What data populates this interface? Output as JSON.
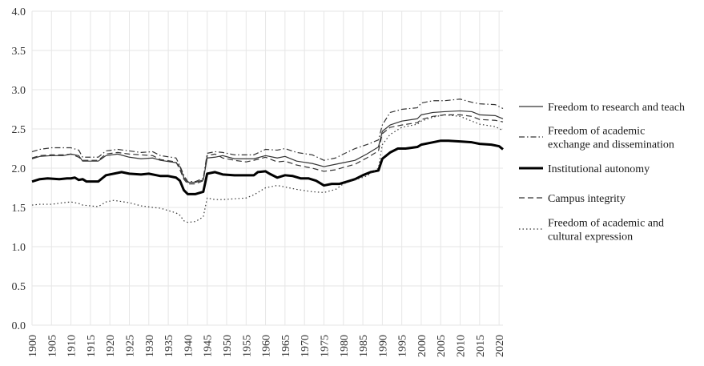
{
  "chart_data": {
    "type": "line",
    "title": "",
    "xlabel": "",
    "ylabel": "",
    "xlim": [
      1900,
      2021
    ],
    "ylim": [
      0,
      4.0
    ],
    "yticks": [
      "0.0",
      "0.5",
      "1.0",
      "1.5",
      "2.0",
      "2.5",
      "3.0",
      "3.5",
      "4.0"
    ],
    "xticks": [
      "1900",
      "1905",
      "1910",
      "1915",
      "1920",
      "1925",
      "1930",
      "1935",
      "1940",
      "1945",
      "1950",
      "1955",
      "1960",
      "1965",
      "1970",
      "1975",
      "1980",
      "1985",
      "1990",
      "1995",
      "2000",
      "2005",
      "2010",
      "2015",
      "2020"
    ],
    "grid": true,
    "legend_position": "right",
    "series": [
      {
        "name": "Freedom to research and teach",
        "style": "solid",
        "color": "#333333",
        "points": [
          [
            1900,
            2.12
          ],
          [
            1902,
            2.15
          ],
          [
            1905,
            2.16
          ],
          [
            1908,
            2.16
          ],
          [
            1910,
            2.18
          ],
          [
            1912,
            2.16
          ],
          [
            1913,
            2.09
          ],
          [
            1917,
            2.09
          ],
          [
            1919,
            2.16
          ],
          [
            1922,
            2.18
          ],
          [
            1925,
            2.14
          ],
          [
            1928,
            2.12
          ],
          [
            1931,
            2.13
          ],
          [
            1933,
            2.1
          ],
          [
            1937,
            2.07
          ],
          [
            1938,
            2.02
          ],
          [
            1939,
            1.88
          ],
          [
            1940,
            1.82
          ],
          [
            1942,
            1.82
          ],
          [
            1944,
            1.85
          ],
          [
            1945,
            2.13
          ],
          [
            1947,
            2.14
          ],
          [
            1949,
            2.16
          ],
          [
            1952,
            2.12
          ],
          [
            1955,
            2.12
          ],
          [
            1957,
            2.12
          ],
          [
            1960,
            2.16
          ],
          [
            1963,
            2.13
          ],
          [
            1965,
            2.15
          ],
          [
            1968,
            2.09
          ],
          [
            1972,
            2.06
          ],
          [
            1975,
            2.02
          ],
          [
            1978,
            2.05
          ],
          [
            1980,
            2.07
          ],
          [
            1983,
            2.1
          ],
          [
            1986,
            2.18
          ],
          [
            1989,
            2.27
          ],
          [
            1990,
            2.47
          ],
          [
            1992,
            2.55
          ],
          [
            1995,
            2.6
          ],
          [
            1999,
            2.63
          ],
          [
            2000,
            2.68
          ],
          [
            2003,
            2.71
          ],
          [
            2006,
            2.72
          ],
          [
            2010,
            2.73
          ],
          [
            2013,
            2.72
          ],
          [
            2015,
            2.68
          ],
          [
            2019,
            2.67
          ],
          [
            2021,
            2.63
          ]
        ]
      },
      {
        "name": "Freedom of academic exchange and dissemination",
        "style": "dashdot",
        "color": "#333333",
        "points": [
          [
            1900,
            2.21
          ],
          [
            1902,
            2.24
          ],
          [
            1905,
            2.26
          ],
          [
            1908,
            2.26
          ],
          [
            1910,
            2.26
          ],
          [
            1912,
            2.23
          ],
          [
            1913,
            2.14
          ],
          [
            1917,
            2.14
          ],
          [
            1919,
            2.22
          ],
          [
            1922,
            2.24
          ],
          [
            1925,
            2.22
          ],
          [
            1928,
            2.2
          ],
          [
            1931,
            2.21
          ],
          [
            1933,
            2.16
          ],
          [
            1937,
            2.13
          ],
          [
            1938,
            2.03
          ],
          [
            1939,
            1.91
          ],
          [
            1940,
            1.83
          ],
          [
            1942,
            1.83
          ],
          [
            1944,
            1.87
          ],
          [
            1945,
            2.19
          ],
          [
            1947,
            2.21
          ],
          [
            1949,
            2.2
          ],
          [
            1952,
            2.17
          ],
          [
            1955,
            2.17
          ],
          [
            1957,
            2.17
          ],
          [
            1960,
            2.24
          ],
          [
            1963,
            2.23
          ],
          [
            1965,
            2.25
          ],
          [
            1968,
            2.2
          ],
          [
            1972,
            2.17
          ],
          [
            1975,
            2.1
          ],
          [
            1978,
            2.13
          ],
          [
            1980,
            2.18
          ],
          [
            1983,
            2.25
          ],
          [
            1986,
            2.3
          ],
          [
            1989,
            2.36
          ],
          [
            1990,
            2.55
          ],
          [
            1992,
            2.71
          ],
          [
            1995,
            2.75
          ],
          [
            1999,
            2.77
          ],
          [
            2000,
            2.83
          ],
          [
            2003,
            2.86
          ],
          [
            2006,
            2.86
          ],
          [
            2010,
            2.88
          ],
          [
            2013,
            2.84
          ],
          [
            2015,
            2.82
          ],
          [
            2019,
            2.81
          ],
          [
            2021,
            2.76
          ]
        ]
      },
      {
        "name": "Institutional autonomy",
        "style": "bold",
        "color": "#000000",
        "points": [
          [
            1900,
            1.83
          ],
          [
            1902,
            1.86
          ],
          [
            1904,
            1.87
          ],
          [
            1907,
            1.86
          ],
          [
            1909,
            1.87
          ],
          [
            1910,
            1.87
          ],
          [
            1911,
            1.88
          ],
          [
            1912,
            1.85
          ],
          [
            1913,
            1.86
          ],
          [
            1914,
            1.83
          ],
          [
            1916,
            1.83
          ],
          [
            1917,
            1.83
          ],
          [
            1919,
            1.91
          ],
          [
            1922,
            1.94
          ],
          [
            1923,
            1.95
          ],
          [
            1925,
            1.93
          ],
          [
            1928,
            1.92
          ],
          [
            1930,
            1.93
          ],
          [
            1932,
            1.91
          ],
          [
            1933,
            1.9
          ],
          [
            1935,
            1.9
          ],
          [
            1937,
            1.88
          ],
          [
            1938,
            1.84
          ],
          [
            1939,
            1.72
          ],
          [
            1940,
            1.67
          ],
          [
            1942,
            1.67
          ],
          [
            1944,
            1.7
          ],
          [
            1945,
            1.93
          ],
          [
            1947,
            1.95
          ],
          [
            1949,
            1.92
          ],
          [
            1952,
            1.91
          ],
          [
            1955,
            1.91
          ],
          [
            1957,
            1.91
          ],
          [
            1958,
            1.95
          ],
          [
            1960,
            1.96
          ],
          [
            1961,
            1.93
          ],
          [
            1963,
            1.88
          ],
          [
            1965,
            1.91
          ],
          [
            1967,
            1.9
          ],
          [
            1969,
            1.87
          ],
          [
            1971,
            1.87
          ],
          [
            1973,
            1.84
          ],
          [
            1975,
            1.78
          ],
          [
            1977,
            1.8
          ],
          [
            1979,
            1.8
          ],
          [
            1981,
            1.83
          ],
          [
            1983,
            1.86
          ],
          [
            1985,
            1.91
          ],
          [
            1987,
            1.95
          ],
          [
            1989,
            1.97
          ],
          [
            1990,
            2.12
          ],
          [
            1992,
            2.2
          ],
          [
            1994,
            2.25
          ],
          [
            1996,
            2.25
          ],
          [
            1999,
            2.27
          ],
          [
            2000,
            2.3
          ],
          [
            2003,
            2.33
          ],
          [
            2005,
            2.35
          ],
          [
            2007,
            2.35
          ],
          [
            2010,
            2.34
          ],
          [
            2013,
            2.33
          ],
          [
            2015,
            2.31
          ],
          [
            2018,
            2.3
          ],
          [
            2020,
            2.28
          ],
          [
            2021,
            2.24
          ]
        ]
      },
      {
        "name": "Campus integrity",
        "style": "dashed",
        "color": "#333333",
        "points": [
          [
            1900,
            2.13
          ],
          [
            1902,
            2.16
          ],
          [
            1905,
            2.17
          ],
          [
            1908,
            2.17
          ],
          [
            1910,
            2.18
          ],
          [
            1912,
            2.14
          ],
          [
            1913,
            2.1
          ],
          [
            1917,
            2.1
          ],
          [
            1919,
            2.18
          ],
          [
            1922,
            2.2
          ],
          [
            1925,
            2.18
          ],
          [
            1928,
            2.17
          ],
          [
            1931,
            2.16
          ],
          [
            1933,
            2.11
          ],
          [
            1937,
            2.08
          ],
          [
            1938,
            1.98
          ],
          [
            1939,
            1.86
          ],
          [
            1940,
            1.8
          ],
          [
            1942,
            1.8
          ],
          [
            1944,
            1.84
          ],
          [
            1945,
            2.16
          ],
          [
            1947,
            2.18
          ],
          [
            1949,
            2.13
          ],
          [
            1952,
            2.1
          ],
          [
            1955,
            2.08
          ],
          [
            1957,
            2.1
          ],
          [
            1960,
            2.14
          ],
          [
            1963,
            2.08
          ],
          [
            1965,
            2.09
          ],
          [
            1968,
            2.04
          ],
          [
            1972,
            2.0
          ],
          [
            1975,
            1.96
          ],
          [
            1978,
            1.98
          ],
          [
            1980,
            2.01
          ],
          [
            1983,
            2.05
          ],
          [
            1986,
            2.13
          ],
          [
            1989,
            2.22
          ],
          [
            1990,
            2.44
          ],
          [
            1992,
            2.52
          ],
          [
            1995,
            2.55
          ],
          [
            1999,
            2.58
          ],
          [
            2000,
            2.62
          ],
          [
            2003,
            2.66
          ],
          [
            2006,
            2.68
          ],
          [
            2010,
            2.68
          ],
          [
            2013,
            2.66
          ],
          [
            2015,
            2.62
          ],
          [
            2019,
            2.61
          ],
          [
            2021,
            2.59
          ]
        ]
      },
      {
        "name": "Freedom of academic and cultural expression",
        "style": "dotted",
        "color": "#333333",
        "points": [
          [
            1900,
            1.53
          ],
          [
            1902,
            1.54
          ],
          [
            1905,
            1.54
          ],
          [
            1908,
            1.56
          ],
          [
            1910,
            1.57
          ],
          [
            1912,
            1.55
          ],
          [
            1913,
            1.53
          ],
          [
            1917,
            1.51
          ],
          [
            1919,
            1.57
          ],
          [
            1921,
            1.59
          ],
          [
            1925,
            1.56
          ],
          [
            1928,
            1.52
          ],
          [
            1931,
            1.5
          ],
          [
            1933,
            1.49
          ],
          [
            1935,
            1.46
          ],
          [
            1937,
            1.43
          ],
          [
            1938,
            1.4
          ],
          [
            1939,
            1.33
          ],
          [
            1940,
            1.31
          ],
          [
            1942,
            1.32
          ],
          [
            1944,
            1.38
          ],
          [
            1945,
            1.62
          ],
          [
            1947,
            1.6
          ],
          [
            1949,
            1.6
          ],
          [
            1952,
            1.61
          ],
          [
            1955,
            1.62
          ],
          [
            1957,
            1.66
          ],
          [
            1960,
            1.75
          ],
          [
            1963,
            1.78
          ],
          [
            1965,
            1.76
          ],
          [
            1968,
            1.73
          ],
          [
            1972,
            1.7
          ],
          [
            1975,
            1.69
          ],
          [
            1978,
            1.73
          ],
          [
            1980,
            1.8
          ],
          [
            1983,
            1.85
          ],
          [
            1986,
            1.9
          ],
          [
            1989,
            2.0
          ],
          [
            1990,
            2.3
          ],
          [
            1992,
            2.43
          ],
          [
            1995,
            2.52
          ],
          [
            1999,
            2.56
          ],
          [
            2000,
            2.6
          ],
          [
            2003,
            2.65
          ],
          [
            2006,
            2.68
          ],
          [
            2010,
            2.66
          ],
          [
            2013,
            2.6
          ],
          [
            2015,
            2.56
          ],
          [
            2019,
            2.53
          ],
          [
            2021,
            2.48
          ]
        ]
      }
    ],
    "legend_entries": [
      {
        "lines": [
          "Freedom to research and teach"
        ]
      },
      {
        "lines": [
          "Freedom of academic",
          "exchange and dissemination"
        ]
      },
      {
        "lines": [
          "Institutional autonomy"
        ]
      },
      {
        "lines": [
          "Campus integrity"
        ]
      },
      {
        "lines": [
          "Freedom of academic and",
          "cultural expression"
        ]
      }
    ]
  }
}
